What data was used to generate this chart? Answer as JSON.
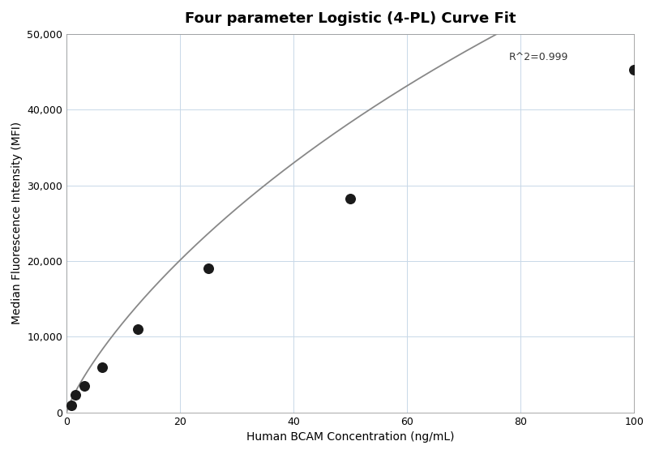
{
  "title": "Four parameter Logistic (4-PL) Curve Fit",
  "xlabel": "Human BCAM Concentration (ng/mL)",
  "ylabel": "Median Fluorescence Intensity (MFI)",
  "x_data": [
    0.781,
    1.563,
    3.125,
    6.25,
    12.5,
    25,
    50,
    100
  ],
  "y_data": [
    900,
    2300,
    3500,
    6000,
    11000,
    19000,
    28200,
    45300
  ],
  "r_squared": "R^2=0.999",
  "xlim": [
    0,
    100
  ],
  "ylim": [
    0,
    50000
  ],
  "xticks": [
    0,
    20,
    40,
    60,
    80,
    100
  ],
  "yticks": [
    0,
    10000,
    20000,
    30000,
    40000,
    50000
  ],
  "ytick_labels": [
    "0",
    "10,000",
    "20,000",
    "30,000",
    "40,000",
    "50,000"
  ],
  "curve_color": "#888888",
  "dot_color": "#1a1a1a",
  "dot_size": 70,
  "background_color": "#ffffff",
  "grid_color": "#c8d8e8",
  "title_fontsize": 13,
  "label_fontsize": 10,
  "annotation_fontsize": 9,
  "4pl_A": 50,
  "4pl_B": 0.82,
  "4pl_C": 290.0,
  "4pl_D": 200000
}
